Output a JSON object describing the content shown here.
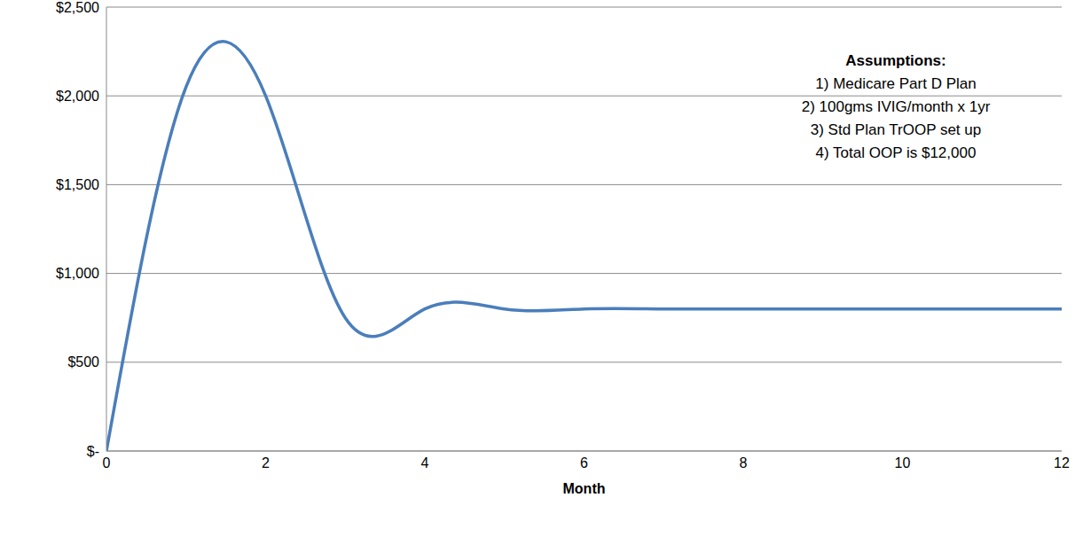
{
  "chart_data": {
    "type": "line",
    "x": [
      0,
      1,
      2,
      3,
      4,
      5,
      6,
      7,
      8,
      9,
      10,
      11,
      12
    ],
    "values": [
      0,
      2050,
      2000,
      750,
      800,
      800,
      800,
      800,
      800,
      800,
      800,
      800,
      800
    ],
    "color": "#4a7ebb",
    "line_style": "smooth",
    "marker": "none",
    "xlim": [
      0,
      12
    ],
    "xticks": [
      0,
      2,
      4,
      6,
      8,
      10,
      12
    ],
    "ylim": [
      0,
      2500
    ],
    "yticks": [
      {
        "value": 0,
        "label": "$-"
      },
      {
        "value": 500,
        "label": "$500"
      },
      {
        "value": 1000,
        "label": "$1,000"
      },
      {
        "value": 1500,
        "label": "$1,500"
      },
      {
        "value": 2000,
        "label": "$2,000"
      },
      {
        "value": 2500,
        "label": "$2,500"
      }
    ],
    "x_label": "Month",
    "annotations": [
      "Assumptions:",
      "1) Medicare Part D Plan",
      "2) 100gms IVIG/month x 1yr",
      "3) Std Plan TrOOP set up",
      "4) Total OOP is $12,000"
    ],
    "grid": true
  }
}
